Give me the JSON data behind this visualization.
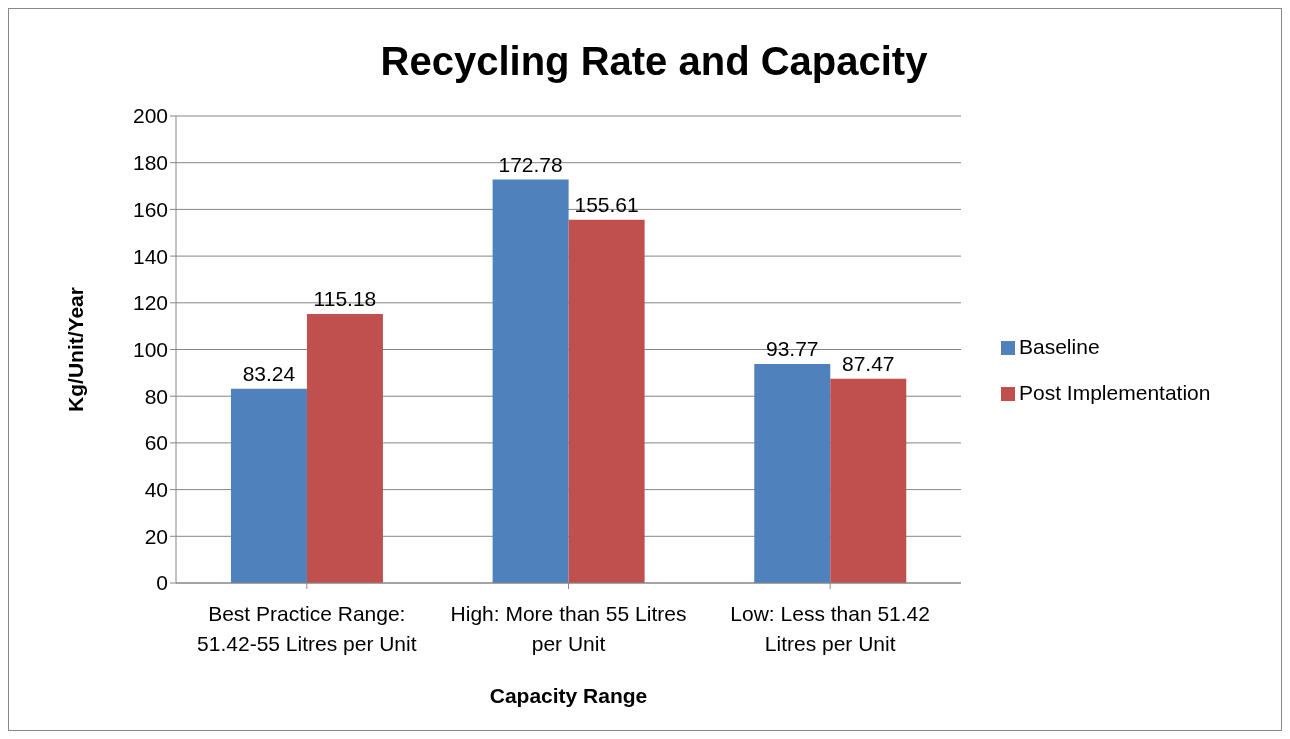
{
  "chart_data": {
    "type": "bar",
    "title": "Recycling Rate and Capacity",
    "xlabel": "Capacity Range",
    "ylabel": "Kg/Unit/Year",
    "categories": [
      "Best Practice Range: 51.42-55 Litres per Unit",
      "High: More than 55 Litres per Unit",
      "Low: Less than 51.42 Litres per Unit"
    ],
    "series": [
      {
        "name": "Baseline",
        "color": "#4f81bd",
        "values": [
          83.24,
          172.78,
          93.77
        ]
      },
      {
        "name": "Post Implementation",
        "color": "#c0504d",
        "values": [
          115.18,
          155.61,
          87.47
        ]
      }
    ],
    "ylim": [
      0,
      200
    ],
    "yticks": [
      0,
      20,
      40,
      60,
      80,
      100,
      120,
      140,
      160,
      180,
      200
    ],
    "grid": "y",
    "legend": "right",
    "data_labels": true
  }
}
